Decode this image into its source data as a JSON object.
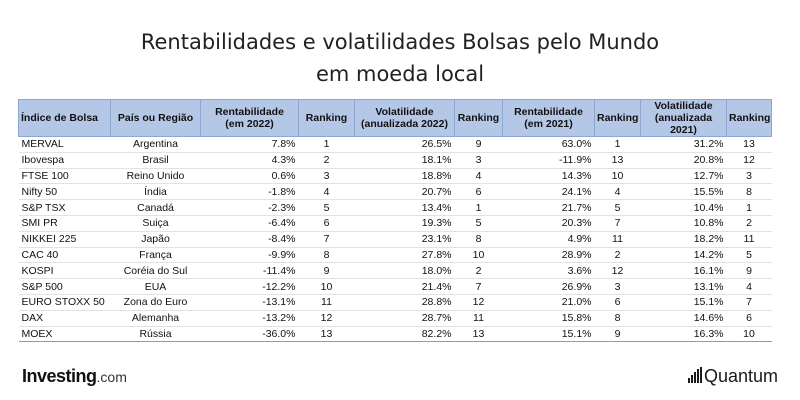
{
  "title": {
    "line1": "Rentabilidades e volatilidades Bolsas pelo Mundo",
    "line2": "em moeda local"
  },
  "table": {
    "headers": {
      "index": "Índice de Bolsa",
      "country": "País ou Região",
      "ret2022_a": "Rentabilidade",
      "ret2022_b": "(em 2022)",
      "rank1": "Ranking",
      "vol2022_a": "Volatilidade",
      "vol2022_b": "(anualizada 2022)",
      "rank2": "Ranking",
      "ret2021_a": "Rentabilidade",
      "ret2021_b": "(em 2021)",
      "rank3": "Ranking",
      "vol2021_a": "Volatilidade",
      "vol2021_b": "(anualizada 2021)",
      "rank4": "Ranking"
    },
    "rows": [
      [
        "MERVAL",
        "Argentina",
        "7.8%",
        "1",
        "26.5%",
        "9",
        "63.0%",
        "1",
        "31.2%",
        "13"
      ],
      [
        "Ibovespa",
        "Brasil",
        "4.3%",
        "2",
        "18.1%",
        "3",
        "-11.9%",
        "13",
        "20.8%",
        "12"
      ],
      [
        "FTSE 100",
        "Reino Unido",
        "0.6%",
        "3",
        "18.8%",
        "4",
        "14.3%",
        "10",
        "12.7%",
        "3"
      ],
      [
        "Nifty 50",
        "Índia",
        "-1.8%",
        "4",
        "20.7%",
        "6",
        "24.1%",
        "4",
        "15.5%",
        "8"
      ],
      [
        "S&P TSX",
        "Canadá",
        "-2.3%",
        "5",
        "13.4%",
        "1",
        "21.7%",
        "5",
        "10.4%",
        "1"
      ],
      [
        "SMI PR",
        "Suiça",
        "-6.4%",
        "6",
        "19.3%",
        "5",
        "20.3%",
        "7",
        "10.8%",
        "2"
      ],
      [
        "NIKKEI 225",
        "Japão",
        "-8.4%",
        "7",
        "23.1%",
        "8",
        "4.9%",
        "11",
        "18.2%",
        "11"
      ],
      [
        "CAC 40",
        "França",
        "-9.9%",
        "8",
        "27.8%",
        "10",
        "28.9%",
        "2",
        "14.2%",
        "5"
      ],
      [
        "KOSPI",
        "Coréia do Sul",
        "-11.4%",
        "9",
        "18.0%",
        "2",
        "3.6%",
        "12",
        "16.1%",
        "9"
      ],
      [
        "S&P 500",
        "EUA",
        "-12.2%",
        "10",
        "21.4%",
        "7",
        "26.9%",
        "3",
        "13.1%",
        "4"
      ],
      [
        "EURO STOXX 50",
        "Zona do Euro",
        "-13.1%",
        "11",
        "28.8%",
        "12",
        "21.0%",
        "6",
        "15.1%",
        "7"
      ],
      [
        "DAX",
        "Alemanha",
        "-13.2%",
        "12",
        "28.7%",
        "11",
        "15.8%",
        "8",
        "14.6%",
        "6"
      ],
      [
        "MOEX",
        "Rússia",
        "-36.0%",
        "13",
        "82.2%",
        "13",
        "15.1%",
        "9",
        "16.3%",
        "10"
      ]
    ]
  },
  "footer": {
    "brand_left": "Investing",
    "brand_left_suffix": ".com",
    "brand_right": "Quantum"
  }
}
